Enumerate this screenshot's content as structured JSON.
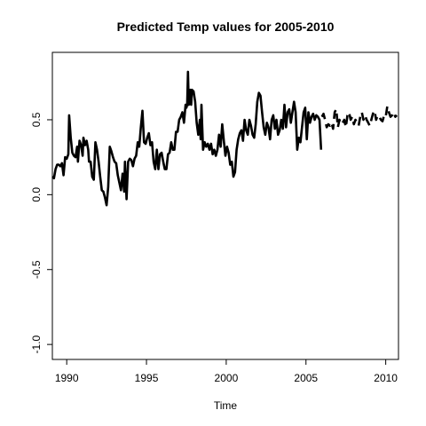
{
  "chart_data": {
    "type": "line",
    "title": "Predicted Temp values for 2005-2010",
    "xlabel": "Time",
    "ylabel": "",
    "xlim": [
      1989.1,
      2010.8
    ],
    "ylim": [
      -1.1,
      0.95
    ],
    "x_ticks": [
      1990,
      1995,
      2000,
      2005,
      2010
    ],
    "x_tick_labels": [
      "1990",
      "1995",
      "2000",
      "2005",
      "2010"
    ],
    "y_ticks": [
      -1.0,
      -0.5,
      0.0,
      0.5
    ],
    "y_tick_labels": [
      "-1.0",
      "-0.5",
      "0.0",
      "0.5"
    ],
    "grid": false,
    "series": [
      {
        "style": "solid",
        "color": "#000000",
        "points": [
          [
            1989.1,
            0.12
          ],
          [
            1989.2,
            0.11
          ],
          [
            1989.3,
            0.17
          ],
          [
            1989.4,
            0.2
          ],
          [
            1989.5,
            0.2
          ],
          [
            1989.6,
            0.19
          ],
          [
            1989.7,
            0.21
          ],
          [
            1989.8,
            0.13
          ],
          [
            1989.9,
            0.25
          ],
          [
            1990.0,
            0.24
          ],
          [
            1990.1,
            0.27
          ],
          [
            1990.15,
            0.53
          ],
          [
            1990.25,
            0.38
          ],
          [
            1990.35,
            0.28
          ],
          [
            1990.45,
            0.26
          ],
          [
            1990.55,
            0.25
          ],
          [
            1990.65,
            0.32
          ],
          [
            1990.7,
            0.22
          ],
          [
            1990.8,
            0.36
          ],
          [
            1990.9,
            0.33
          ],
          [
            1991.0,
            0.26
          ],
          [
            1991.05,
            0.38
          ],
          [
            1991.15,
            0.33
          ],
          [
            1991.25,
            0.36
          ],
          [
            1991.35,
            0.3
          ],
          [
            1991.4,
            0.22
          ],
          [
            1991.5,
            0.22
          ],
          [
            1991.6,
            0.12
          ],
          [
            1991.7,
            0.1
          ],
          [
            1991.8,
            0.35
          ],
          [
            1991.9,
            0.3
          ],
          [
            1992.0,
            0.22
          ],
          [
            1992.1,
            0.12
          ],
          [
            1992.2,
            0.03
          ],
          [
            1992.3,
            0.02
          ],
          [
            1992.4,
            -0.02
          ],
          [
            1992.5,
            -0.07
          ],
          [
            1992.6,
            0.05
          ],
          [
            1992.7,
            0.32
          ],
          [
            1992.8,
            0.29
          ],
          [
            1992.9,
            0.25
          ],
          [
            1993.0,
            0.22
          ],
          [
            1993.1,
            0.21
          ],
          [
            1993.2,
            0.13
          ],
          [
            1993.3,
            0.08
          ],
          [
            1993.4,
            0.03
          ],
          [
            1993.5,
            0.14
          ],
          [
            1993.6,
            0.02
          ],
          [
            1993.65,
            0.22
          ],
          [
            1993.75,
            -0.03
          ],
          [
            1993.85,
            0.22
          ],
          [
            1993.95,
            0.24
          ],
          [
            1994.05,
            0.23
          ],
          [
            1994.15,
            0.19
          ],
          [
            1994.25,
            0.24
          ],
          [
            1994.35,
            0.26
          ],
          [
            1994.45,
            0.35
          ],
          [
            1994.55,
            0.32
          ],
          [
            1994.65,
            0.45
          ],
          [
            1994.75,
            0.56
          ],
          [
            1994.85,
            0.35
          ],
          [
            1994.95,
            0.34
          ],
          [
            1995.05,
            0.38
          ],
          [
            1995.15,
            0.41
          ],
          [
            1995.25,
            0.33
          ],
          [
            1995.35,
            0.35
          ],
          [
            1995.45,
            0.22
          ],
          [
            1995.55,
            0.17
          ],
          [
            1995.65,
            0.3
          ],
          [
            1995.75,
            0.17
          ],
          [
            1995.85,
            0.27
          ],
          [
            1995.95,
            0.28
          ],
          [
            1996.05,
            0.22
          ],
          [
            1996.15,
            0.17
          ],
          [
            1996.25,
            0.17
          ],
          [
            1996.35,
            0.27
          ],
          [
            1996.45,
            0.28
          ],
          [
            1996.55,
            0.35
          ],
          [
            1996.65,
            0.3
          ],
          [
            1996.75,
            0.3
          ],
          [
            1996.85,
            0.42
          ],
          [
            1996.95,
            0.42
          ],
          [
            1997.05,
            0.5
          ],
          [
            1997.15,
            0.52
          ],
          [
            1997.25,
            0.55
          ],
          [
            1997.35,
            0.48
          ],
          [
            1997.45,
            0.6
          ],
          [
            1997.5,
            0.58
          ],
          [
            1997.55,
            0.6
          ],
          [
            1997.6,
            0.82
          ],
          [
            1997.65,
            0.6
          ],
          [
            1997.7,
            0.64
          ],
          [
            1997.75,
            0.7
          ],
          [
            1997.8,
            0.6
          ],
          [
            1997.85,
            0.7
          ],
          [
            1997.95,
            0.69
          ],
          [
            1998.05,
            0.62
          ],
          [
            1998.15,
            0.48
          ],
          [
            1998.25,
            0.4
          ],
          [
            1998.35,
            0.5
          ],
          [
            1998.4,
            0.37
          ],
          [
            1998.45,
            0.6
          ],
          [
            1998.5,
            0.45
          ],
          [
            1998.55,
            0.3
          ],
          [
            1998.65,
            0.35
          ],
          [
            1998.75,
            0.32
          ],
          [
            1998.85,
            0.34
          ],
          [
            1998.95,
            0.3
          ],
          [
            1999.05,
            0.34
          ],
          [
            1999.15,
            0.27
          ],
          [
            1999.25,
            0.3
          ],
          [
            1999.35,
            0.26
          ],
          [
            1999.45,
            0.3
          ],
          [
            1999.55,
            0.4
          ],
          [
            1999.65,
            0.32
          ],
          [
            1999.75,
            0.47
          ],
          [
            1999.85,
            0.36
          ],
          [
            1999.95,
            0.26
          ],
          [
            2000.05,
            0.32
          ],
          [
            2000.15,
            0.28
          ],
          [
            2000.25,
            0.2
          ],
          [
            2000.35,
            0.22
          ],
          [
            2000.45,
            0.12
          ],
          [
            2000.55,
            0.15
          ],
          [
            2000.65,
            0.3
          ],
          [
            2000.75,
            0.37
          ],
          [
            2000.85,
            0.41
          ],
          [
            2000.95,
            0.43
          ],
          [
            2001.05,
            0.36
          ],
          [
            2001.15,
            0.5
          ],
          [
            2001.25,
            0.43
          ],
          [
            2001.35,
            0.4
          ],
          [
            2001.45,
            0.5
          ],
          [
            2001.55,
            0.46
          ],
          [
            2001.65,
            0.4
          ],
          [
            2001.75,
            0.38
          ],
          [
            2001.85,
            0.47
          ],
          [
            2001.95,
            0.62
          ],
          [
            2002.05,
            0.68
          ],
          [
            2002.15,
            0.66
          ],
          [
            2002.25,
            0.55
          ],
          [
            2002.35,
            0.45
          ],
          [
            2002.45,
            0.4
          ],
          [
            2002.55,
            0.48
          ],
          [
            2002.65,
            0.45
          ],
          [
            2002.75,
            0.37
          ],
          [
            2002.85,
            0.5
          ],
          [
            2002.95,
            0.53
          ],
          [
            2003.05,
            0.44
          ],
          [
            2003.15,
            0.5
          ],
          [
            2003.25,
            0.4
          ],
          [
            2003.35,
            0.43
          ],
          [
            2003.45,
            0.5
          ],
          [
            2003.55,
            0.44
          ],
          [
            2003.65,
            0.6
          ],
          [
            2003.75,
            0.45
          ],
          [
            2003.85,
            0.55
          ],
          [
            2003.95,
            0.57
          ],
          [
            2004.05,
            0.48
          ],
          [
            2004.15,
            0.55
          ],
          [
            2004.25,
            0.62
          ],
          [
            2004.35,
            0.55
          ],
          [
            2004.45,
            0.3
          ],
          [
            2004.55,
            0.38
          ],
          [
            2004.65,
            0.35
          ],
          [
            2004.75,
            0.45
          ],
          [
            2004.85,
            0.55
          ],
          [
            2004.95,
            0.58
          ],
          [
            2005.05,
            0.37
          ],
          [
            2005.15,
            0.55
          ],
          [
            2005.25,
            0.48
          ],
          [
            2005.35,
            0.52
          ],
          [
            2005.45,
            0.54
          ],
          [
            2005.55,
            0.5
          ],
          [
            2005.65,
            0.53
          ],
          [
            2005.75,
            0.52
          ],
          [
            2005.85,
            0.5
          ],
          [
            2005.95,
            0.3
          ]
        ]
      },
      {
        "style": "dashed",
        "color": "#000000",
        "points": [
          [
            2006.0,
            0.52
          ],
          [
            2006.1,
            0.54
          ],
          [
            2006.2,
            0.5
          ],
          [
            2006.3,
            0.45
          ],
          [
            2006.4,
            0.47
          ],
          [
            2006.5,
            0.46
          ],
          [
            2006.6,
            0.48
          ],
          [
            2006.7,
            0.44
          ],
          [
            2006.8,
            0.55
          ],
          [
            2006.9,
            0.57
          ],
          [
            2007.0,
            0.45
          ],
          [
            2007.1,
            0.5
          ],
          [
            2007.2,
            0.47
          ],
          [
            2007.3,
            0.48
          ],
          [
            2007.4,
            0.5
          ],
          [
            2007.5,
            0.45
          ],
          [
            2007.6,
            0.53
          ],
          [
            2007.7,
            0.55
          ],
          [
            2007.8,
            0.5
          ],
          [
            2007.9,
            0.52
          ],
          [
            2008.0,
            0.47
          ],
          [
            2008.1,
            0.5
          ],
          [
            2008.2,
            0.48
          ],
          [
            2008.3,
            0.46
          ],
          [
            2008.4,
            0.52
          ],
          [
            2008.5,
            0.55
          ],
          [
            2008.6,
            0.5
          ],
          [
            2008.7,
            0.53
          ],
          [
            2008.8,
            0.5
          ],
          [
            2008.9,
            0.48
          ],
          [
            2009.0,
            0.46
          ],
          [
            2009.1,
            0.5
          ],
          [
            2009.2,
            0.54
          ],
          [
            2009.3,
            0.56
          ],
          [
            2009.4,
            0.5
          ],
          [
            2009.5,
            0.53
          ],
          [
            2009.6,
            0.52
          ],
          [
            2009.7,
            0.5
          ],
          [
            2009.8,
            0.49
          ],
          [
            2009.9,
            0.53
          ],
          [
            2010.0,
            0.52
          ],
          [
            2010.1,
            0.59
          ],
          [
            2010.2,
            0.55
          ],
          [
            2010.3,
            0.52
          ],
          [
            2010.4,
            0.53
          ],
          [
            2010.5,
            0.55
          ],
          [
            2010.6,
            0.52
          ],
          [
            2010.7,
            0.53
          ]
        ]
      }
    ]
  }
}
